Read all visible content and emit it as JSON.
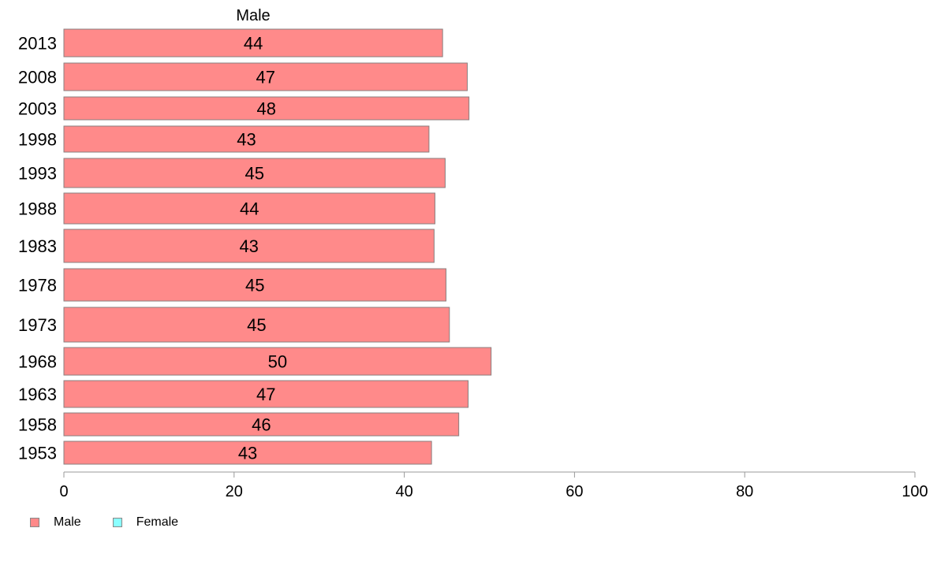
{
  "chart_data": {
    "type": "bar",
    "orientation": "horizontal",
    "title": "Male",
    "categories": [
      "2013",
      "2008",
      "2003",
      "1998",
      "1993",
      "1988",
      "1983",
      "1978",
      "1973",
      "1968",
      "1963",
      "1958",
      "1953"
    ],
    "series": [
      {
        "name": "Male",
        "color": "#ff8a8a",
        "values": [
          44.5,
          47.4,
          47.6,
          42.9,
          44.8,
          43.6,
          43.5,
          44.9,
          45.3,
          50.2,
          47.5,
          46.4,
          43.2
        ],
        "labels": [
          "44",
          "47",
          "48",
          "43",
          "45",
          "44",
          "43",
          "45",
          "45",
          "50",
          "47",
          "46",
          "43"
        ]
      }
    ],
    "xlim": [
      0,
      100
    ],
    "xticks": [
      "0",
      "20",
      "40",
      "60",
      "80",
      "100"
    ],
    "xlabel": "",
    "ylabel": "",
    "grid": false,
    "legend_position": "bottom-left"
  },
  "legend": {
    "items": [
      {
        "label": "Male",
        "color": "#ff8a8a"
      },
      {
        "label": "Female",
        "color": "#8affff"
      }
    ]
  }
}
